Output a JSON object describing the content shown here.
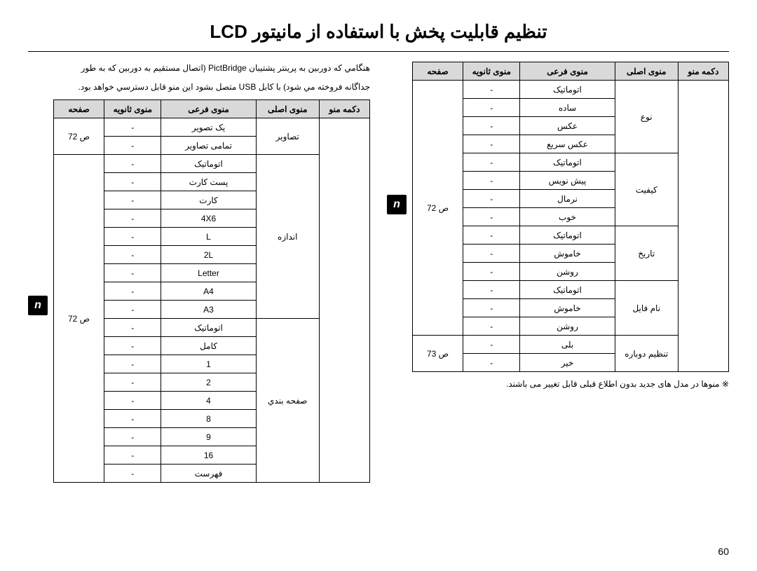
{
  "title": "تنظیم قابلیت پخش با استفاده از مانیتور LCD",
  "description": [
    "هنگامي که دوربین به پرینتر پشتیبان PictBridge (اتصال مستقیم به دوربین که به طور",
    "جداگانه فروخته مي شود) با کابل USB متصل بشود این منو قابل دسترسي خواهد بود."
  ],
  "headers": {
    "menu_btn": "دکمه منو",
    "main_menu": "منوی اصلی",
    "sub_menu": "منوی فرعی",
    "sec_menu": "منوی ثانویه",
    "page": "صفحه"
  },
  "right_table": {
    "sections": [
      {
        "main": "تصاویر",
        "rows": [
          {
            "sub": "یک تصویر",
            "sec": "-",
            "page": "ص 72"
          },
          {
            "sub": "تمامی تصاویر",
            "sec": "-",
            "page": ""
          }
        ]
      },
      {
        "main": "اندازه",
        "rows": [
          {
            "sub": "اتوماتیک",
            "sec": "-",
            "page": "ص 72"
          },
          {
            "sub": "پست کارت",
            "sec": "-",
            "page": ""
          },
          {
            "sub": "کارت",
            "sec": "-",
            "page": ""
          },
          {
            "sub": "4X6",
            "sec": "-",
            "page": ""
          },
          {
            "sub": "L",
            "sec": "-",
            "page": ""
          },
          {
            "sub": "2L",
            "sec": "-",
            "page": ""
          },
          {
            "sub": "Letter",
            "sec": "-",
            "page": ""
          },
          {
            "sub": "A4",
            "sec": "-",
            "page": ""
          },
          {
            "sub": "A3",
            "sec": "-",
            "page": ""
          }
        ]
      },
      {
        "main": "صفحه بندي",
        "rows": [
          {
            "sub": "اتوماتیک",
            "sec": "-",
            "page": ""
          },
          {
            "sub": "کامل",
            "sec": "-",
            "page": ""
          },
          {
            "sub": "1",
            "sec": "-",
            "page": ""
          },
          {
            "sub": "2",
            "sec": "-",
            "page": ""
          },
          {
            "sub": "4",
            "sec": "-",
            "page": ""
          },
          {
            "sub": "8",
            "sec": "-",
            "page": ""
          },
          {
            "sub": "9",
            "sec": "-",
            "page": ""
          },
          {
            "sub": "16",
            "sec": "-",
            "page": ""
          },
          {
            "sub": "فهرست",
            "sec": "-",
            "page": ""
          }
        ]
      }
    ]
  },
  "left_table": {
    "sections": [
      {
        "main": "نوع",
        "page": "ص 72",
        "rows": [
          {
            "sub": "اتوماتیک",
            "sec": "-"
          },
          {
            "sub": "ساده",
            "sec": "-"
          },
          {
            "sub": "عکس",
            "sec": "-"
          },
          {
            "sub": "عکس سریع",
            "sec": "-"
          }
        ]
      },
      {
        "main": "کیفیت",
        "page": "",
        "rows": [
          {
            "sub": "اتوماتیک",
            "sec": "-"
          },
          {
            "sub": "پیش نویس",
            "sec": "-"
          },
          {
            "sub": "نرمال",
            "sec": "-"
          },
          {
            "sub": "خوب",
            "sec": "-"
          }
        ]
      },
      {
        "main": "تاریخ",
        "page": "",
        "rows": [
          {
            "sub": "اتوماتیک",
            "sec": "-"
          },
          {
            "sub": "خاموش",
            "sec": "-"
          },
          {
            "sub": "روشن",
            "sec": "-"
          }
        ]
      },
      {
        "main": "نام فایل",
        "page": "",
        "rows": [
          {
            "sub": "اتوماتیک",
            "sec": "-"
          },
          {
            "sub": "خاموش",
            "sec": "-"
          },
          {
            "sub": "روشن",
            "sec": "-"
          }
        ]
      },
      {
        "main": "تنظیم دوباره",
        "page": "ص 73",
        "rows": [
          {
            "sub": "بلی",
            "sec": "-"
          },
          {
            "sub": "خیر",
            "sec": "-"
          }
        ]
      }
    ]
  },
  "note": "※ منوها در مدل های جدید بدون اطلاع قبلی قابل تغییر می باشند.",
  "page_num": "60",
  "icon_glyph": "n"
}
